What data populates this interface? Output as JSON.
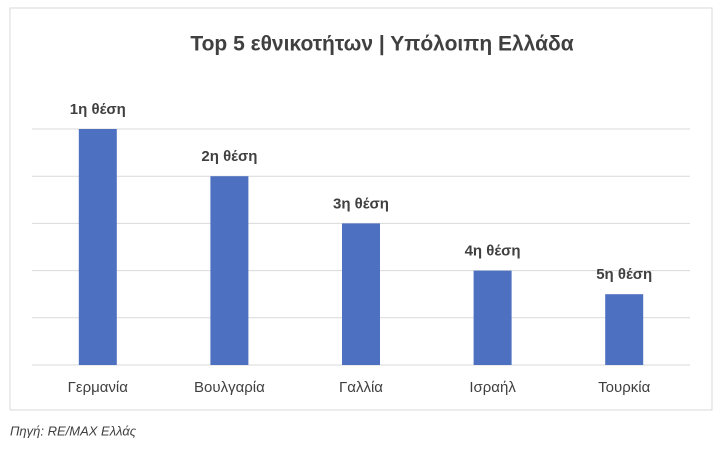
{
  "chart_data": {
    "type": "bar",
    "title": "Top 5 εθνικοτήτων | Υπόλοιπη Ελλάδα",
    "categories": [
      "Γερμανία",
      "Βουλγαρία",
      "Γαλλία",
      "Ισραήλ",
      "Τουρκία"
    ],
    "values": [
      5,
      4,
      3,
      2,
      1.5
    ],
    "labels": [
      "1η θέση",
      "2η θέση",
      "3η θέση",
      "4η θέση",
      "5η θέση"
    ],
    "color": "#4e70c0",
    "ylim": [
      0,
      5
    ],
    "yticks": [
      0,
      1,
      2,
      3,
      4,
      5
    ],
    "grid": true,
    "source": "Πηγή: RE/MAX Ελλάς"
  }
}
